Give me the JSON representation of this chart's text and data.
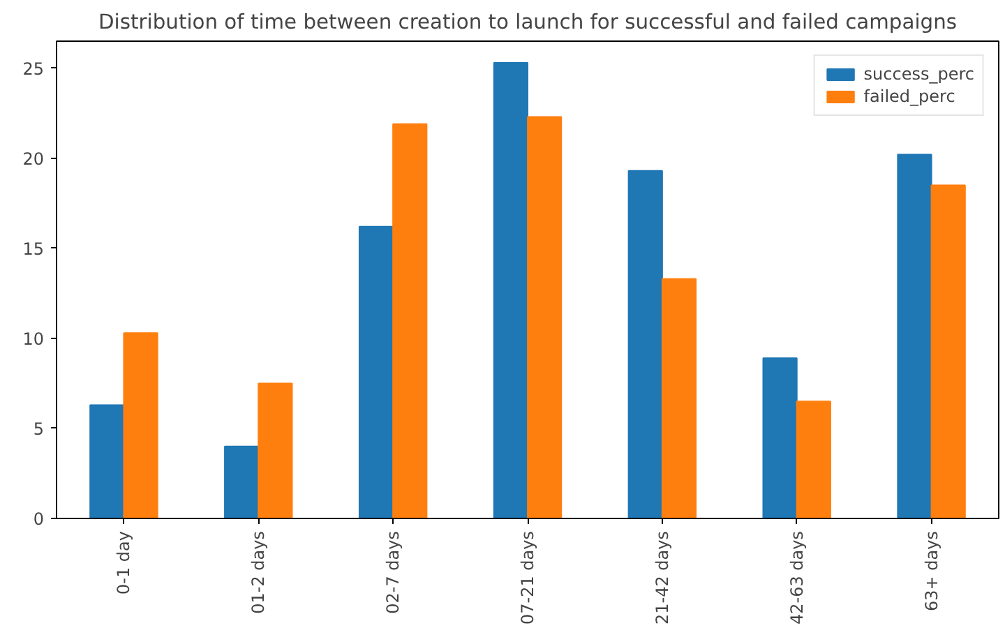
{
  "chart_data": {
    "type": "bar",
    "title": "Distribution of time between creation to launch for successful and failed campaigns",
    "categories": [
      "0-1 day",
      "01-2 days",
      "02-7 days",
      "07-21 days",
      "21-42 days",
      "42-63 days",
      "63+ days"
    ],
    "series": [
      {
        "name": "success_perc",
        "color": "#1f77b4",
        "values": [
          6.3,
          4.0,
          16.2,
          25.3,
          19.3,
          8.9,
          20.2
        ]
      },
      {
        "name": "failed_perc",
        "color": "#ff7f0e",
        "values": [
          10.3,
          7.5,
          21.9,
          22.3,
          13.3,
          6.5,
          18.5
        ]
      }
    ],
    "ylim": [
      0,
      26.5
    ],
    "yticks": [
      0,
      5,
      10,
      15,
      20,
      25
    ],
    "grid": false,
    "legend": "top right"
  }
}
